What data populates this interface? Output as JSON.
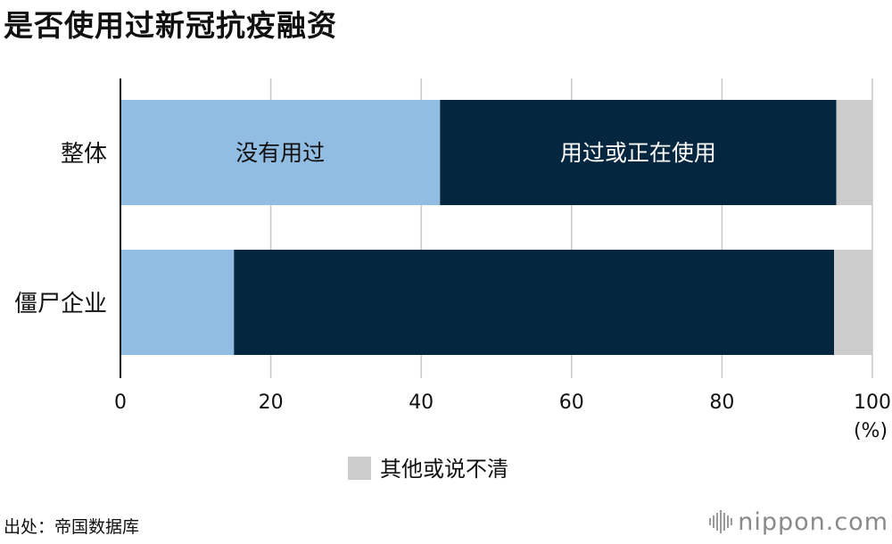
{
  "title": "是否使用过新冠抗疫融资",
  "source": "出处：帝国数据库",
  "logo_text": "nippon.com",
  "chart_data": {
    "type": "bar",
    "orientation": "horizontal",
    "stacked": true,
    "categories": [
      "整体",
      "僵尸企业"
    ],
    "series": [
      {
        "name": "没有用过",
        "values": [
          42.5,
          15.1
        ],
        "color": "#92bde2"
      },
      {
        "name": "用过或正在使用",
        "values": [
          52.7,
          79.8
        ],
        "color": "#05263f"
      },
      {
        "name": "其他或说不清",
        "values": [
          4.8,
          5.1
        ],
        "color": "#cccccc"
      }
    ],
    "xlim": [
      0,
      100
    ],
    "xticks": [
      0,
      20,
      40,
      60,
      80,
      100
    ],
    "unit": "(%)",
    "grid": true,
    "inline_labels": [
      {
        "series": 0,
        "category": 0,
        "text": "没有用过"
      },
      {
        "series": 1,
        "category": 0,
        "text": "用过或正在使用"
      }
    ],
    "legend": {
      "position": "bottom-center",
      "entries": [
        2
      ]
    }
  }
}
